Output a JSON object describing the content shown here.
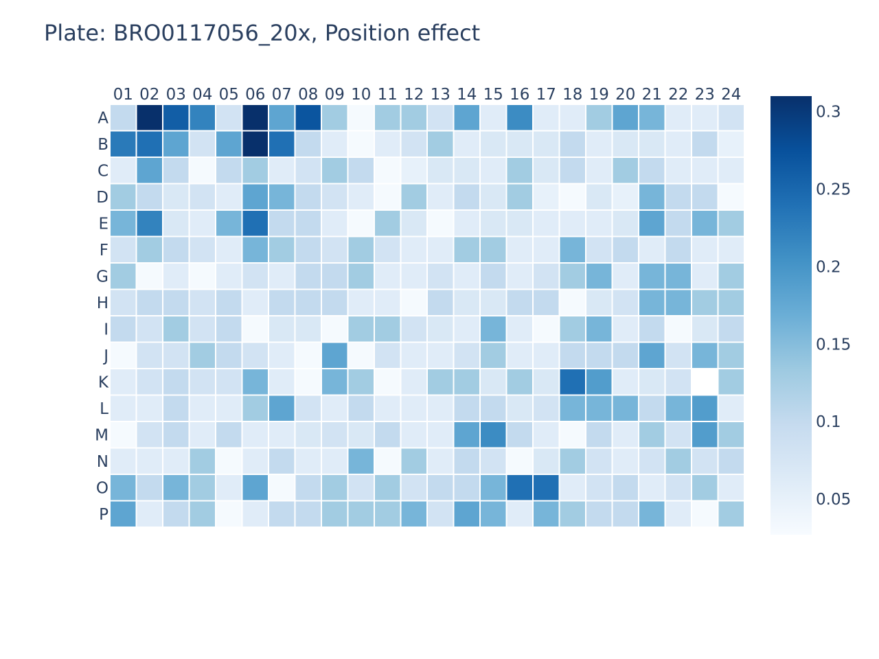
{
  "chart_data": {
    "type": "heatmap",
    "title": "Plate: BRO0117056_20x, Position effect",
    "xlabel": "",
    "ylabel": "",
    "columns": [
      "01",
      "02",
      "03",
      "04",
      "05",
      "06",
      "07",
      "08",
      "09",
      "10",
      "11",
      "12",
      "13",
      "14",
      "15",
      "16",
      "17",
      "18",
      "19",
      "20",
      "21",
      "22",
      "23",
      "24"
    ],
    "rows": [
      "A",
      "B",
      "C",
      "D",
      "E",
      "F",
      "G",
      "H",
      "I",
      "J",
      "K",
      "L",
      "M",
      "N",
      "O",
      "P"
    ],
    "values": [
      [
        0.1,
        0.31,
        0.26,
        0.22,
        0.08,
        0.31,
        0.18,
        0.27,
        0.13,
        0.03,
        0.13,
        0.13,
        0.08,
        0.18,
        0.06,
        0.21,
        0.06,
        0.06,
        0.13,
        0.18,
        0.16,
        0.06,
        0.06,
        0.08
      ],
      [
        0.23,
        0.24,
        0.18,
        0.08,
        0.18,
        0.31,
        0.24,
        0.1,
        0.06,
        0.03,
        0.06,
        0.08,
        0.13,
        0.06,
        0.07,
        0.07,
        0.07,
        0.1,
        0.06,
        0.07,
        0.07,
        0.06,
        0.1,
        0.05
      ],
      [
        0.06,
        0.18,
        0.1,
        0.03,
        0.1,
        0.13,
        0.06,
        0.08,
        0.13,
        0.1,
        0.03,
        0.05,
        0.07,
        0.07,
        0.06,
        0.13,
        0.07,
        0.1,
        0.06,
        0.13,
        0.1,
        0.06,
        0.06,
        0.06
      ],
      [
        0.13,
        0.1,
        0.07,
        0.08,
        0.06,
        0.18,
        0.16,
        0.1,
        0.08,
        0.06,
        0.03,
        0.13,
        0.06,
        0.1,
        0.07,
        0.13,
        0.05,
        0.03,
        0.07,
        0.05,
        0.16,
        0.1,
        0.1,
        0.03
      ],
      [
        0.16,
        0.22,
        0.07,
        0.06,
        0.16,
        0.24,
        0.1,
        0.1,
        0.06,
        0.03,
        0.13,
        0.07,
        0.03,
        0.06,
        0.07,
        0.07,
        0.06,
        0.06,
        0.06,
        0.07,
        0.18,
        0.1,
        0.16,
        0.13
      ],
      [
        0.08,
        0.13,
        0.1,
        0.08,
        0.06,
        0.16,
        0.13,
        0.1,
        0.08,
        0.13,
        0.08,
        0.06,
        0.06,
        0.13,
        0.13,
        0.06,
        0.06,
        0.16,
        0.08,
        0.1,
        0.06,
        0.1,
        0.06,
        0.06
      ],
      [
        0.13,
        0.03,
        0.06,
        0.03,
        0.06,
        0.08,
        0.06,
        0.1,
        0.1,
        0.13,
        0.06,
        0.06,
        0.08,
        0.06,
        0.1,
        0.06,
        0.08,
        0.13,
        0.16,
        0.06,
        0.16,
        0.16,
        0.06,
        0.13
      ],
      [
        0.08,
        0.1,
        0.1,
        0.08,
        0.1,
        0.06,
        0.1,
        0.1,
        0.1,
        0.06,
        0.06,
        0.03,
        0.1,
        0.07,
        0.07,
        0.1,
        0.1,
        0.03,
        0.07,
        0.08,
        0.16,
        0.16,
        0.13,
        0.13
      ],
      [
        0.1,
        0.08,
        0.13,
        0.08,
        0.1,
        0.03,
        0.07,
        0.07,
        0.03,
        0.13,
        0.13,
        0.08,
        0.07,
        0.06,
        0.16,
        0.06,
        0.03,
        0.13,
        0.16,
        0.06,
        0.1,
        0.03,
        0.07,
        0.1
      ],
      [
        0.03,
        0.08,
        0.08,
        0.13,
        0.1,
        0.08,
        0.06,
        0.03,
        0.18,
        0.03,
        0.08,
        0.06,
        0.06,
        0.08,
        0.13,
        0.06,
        0.06,
        0.1,
        0.1,
        0.1,
        0.18,
        0.08,
        0.16,
        0.13
      ],
      [
        0.06,
        0.08,
        0.1,
        0.08,
        0.08,
        0.16,
        0.06,
        0.03,
        0.16,
        0.13,
        0.03,
        0.06,
        0.13,
        0.13,
        0.07,
        0.13,
        0.07,
        0.24,
        0.19,
        0.06,
        0.07,
        0.08,
        0.05,
        0.13
      ],
      [
        0.06,
        0.06,
        0.1,
        0.06,
        0.06,
        0.13,
        0.18,
        0.08,
        0.06,
        0.1,
        0.06,
        0.06,
        0.06,
        0.1,
        0.1,
        0.07,
        0.08,
        0.16,
        0.16,
        0.16,
        0.1,
        0.16,
        0.19,
        0.06
      ],
      [
        0.03,
        0.08,
        0.1,
        0.06,
        0.1,
        0.06,
        0.06,
        0.07,
        0.08,
        0.07,
        0.1,
        0.06,
        0.06,
        0.18,
        0.21,
        0.1,
        0.06,
        0.03,
        0.1,
        0.06,
        0.13,
        0.08,
        0.19,
        0.13
      ],
      [
        0.06,
        0.06,
        0.06,
        0.13,
        0.03,
        0.06,
        0.1,
        0.06,
        0.06,
        0.16,
        0.03,
        0.13,
        0.06,
        0.1,
        0.08,
        0.03,
        0.07,
        0.13,
        0.08,
        0.06,
        0.08,
        0.13,
        0.08,
        0.1
      ],
      [
        0.16,
        0.1,
        0.16,
        0.13,
        0.06,
        0.18,
        0.03,
        0.1,
        0.13,
        0.08,
        0.13,
        0.08,
        0.1,
        0.1,
        0.16,
        0.24,
        0.24,
        0.06,
        0.08,
        0.1,
        0.06,
        0.08,
        0.13,
        0.06
      ],
      [
        0.18,
        0.06,
        0.1,
        0.13,
        0.03,
        0.06,
        0.1,
        0.1,
        0.13,
        0.13,
        0.13,
        0.16,
        0.08,
        0.18,
        0.16,
        0.06,
        0.16,
        0.13,
        0.1,
        0.1,
        0.16,
        0.06,
        0.03,
        0.13
      ]
    ],
    "missing": [
      [
        10,
        22
      ]
    ],
    "zmin": 0.027,
    "zmax": 0.31,
    "colorscale": "Blues",
    "colorbar_ticks": [
      0.05,
      0.1,
      0.15,
      0.2,
      0.25,
      0.3
    ],
    "colorbar_tick_labels": [
      "0.05",
      "0.1",
      "0.15",
      "0.2",
      "0.25",
      "0.3"
    ],
    "x_axis_side": "top"
  }
}
